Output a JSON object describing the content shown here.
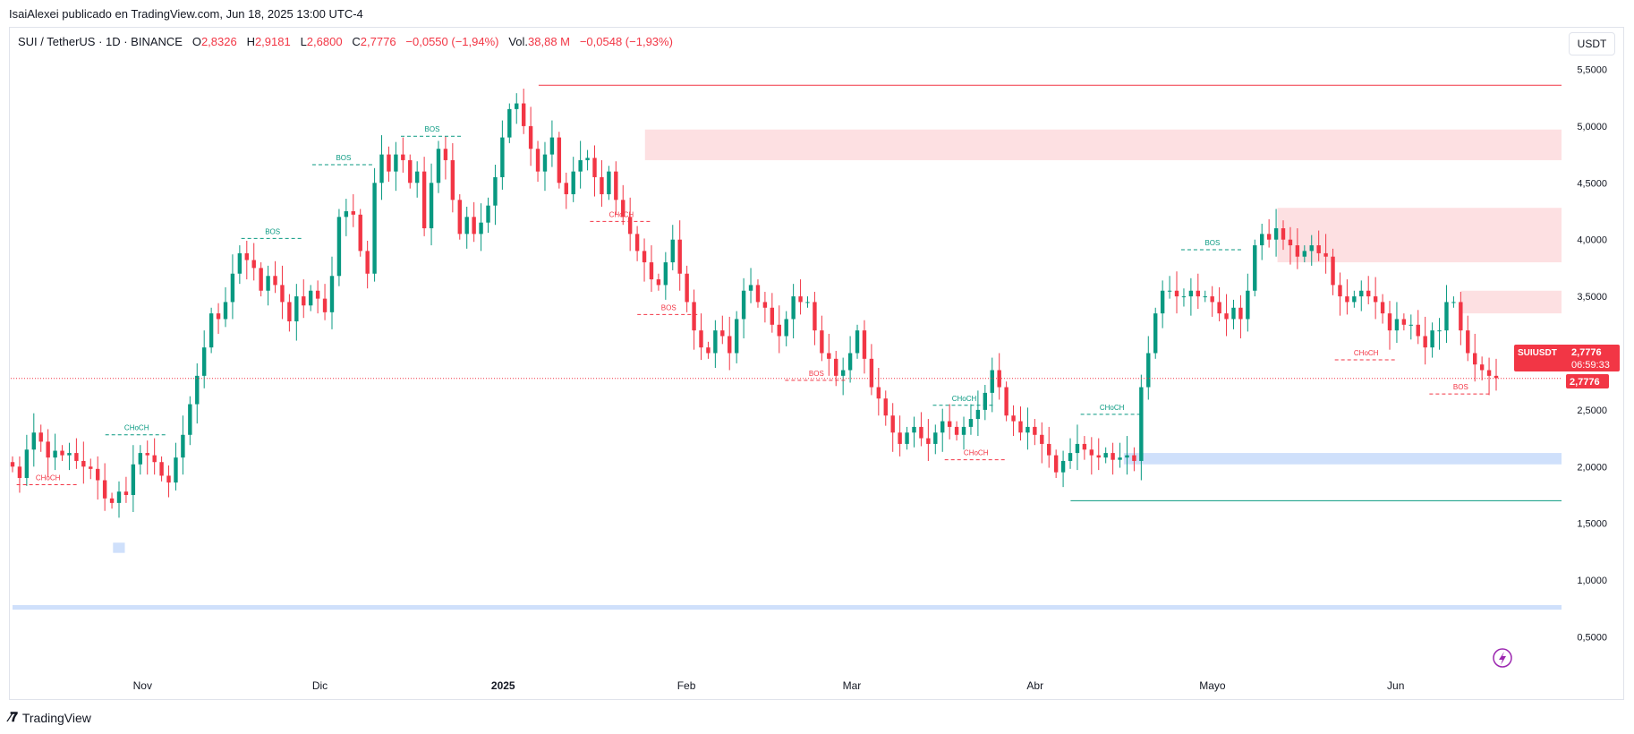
{
  "caption": "IsaiAlexei publicado en TradingView.com, Jun 18, 2025 13:00 UTC-4",
  "legend": {
    "symbol": "SUI / TetherUS · 1D · BINANCE",
    "o_label": "O",
    "o_value": "2,8326",
    "h_label": "H",
    "h_value": "2,9181",
    "l_label": "L",
    "l_value": "2,6800",
    "c_label": "C",
    "c_value": "2,7776",
    "change": "−0,0550 (−1,94%)",
    "vol_label": "Vol.",
    "vol_value": "38,88 M",
    "vol_change": "−0,0548 (−1,93%)"
  },
  "currency_button": "USDT",
  "brand": "TradingView",
  "colors": {
    "up": "#089981",
    "down": "#f23645",
    "supply_zone": "#fde0e2",
    "demand_zone": "#cfe0fb",
    "text": "#131722",
    "grid": "#e0e3eb"
  },
  "chart_data": {
    "type": "candlestick",
    "title": "SUI / TetherUS · 1D · BINANCE",
    "y_axis_labels": [
      "5,5000",
      "5,0000",
      "4,5000",
      "4,0000",
      "3,5000",
      "3,0000",
      "2,5000",
      "2,0000",
      "1,5000",
      "1,0000",
      "0,5000"
    ],
    "y_ticks": [
      5.5,
      5.0,
      4.5,
      4.0,
      3.5,
      3.0,
      2.5,
      2.0,
      1.5,
      1.0,
      0.5
    ],
    "ylim": [
      0.2,
      5.75
    ],
    "x_axis_labels": [
      {
        "label": "Nov",
        "date": "2024-11-01"
      },
      {
        "label": "Dic",
        "date": "2024-12-01"
      },
      {
        "label": "2025",
        "date": "2025-01-01"
      },
      {
        "label": "Feb",
        "date": "2025-02-01"
      },
      {
        "label": "Mar",
        "date": "2025-03-01"
      },
      {
        "label": "Abr",
        "date": "2025-04-01"
      },
      {
        "label": "Mayo",
        "date": "2025-05-01"
      },
      {
        "label": "Jun",
        "date": "2025-06-01"
      }
    ],
    "date_range": [
      "2024-10-10",
      "2025-06-18"
    ],
    "last_price": {
      "symbol": "SUIUSDT",
      "price": "2,7776",
      "countdown": "06:59:33",
      "value": 2.7776
    },
    "closes": [
      2.0,
      1.9,
      2.15,
      2.3,
      2.22,
      2.08,
      2.14,
      2.1,
      2.12,
      2.05,
      2.0,
      1.98,
      1.88,
      1.72,
      1.68,
      1.78,
      1.75,
      2.02,
      2.12,
      2.1,
      2.04,
      1.92,
      1.86,
      2.08,
      2.28,
      2.55,
      2.8,
      3.05,
      3.35,
      3.3,
      3.45,
      3.7,
      3.88,
      3.82,
      3.75,
      3.55,
      3.68,
      3.6,
      3.45,
      3.28,
      3.5,
      3.42,
      3.55,
      3.48,
      3.36,
      3.68,
      4.2,
      4.25,
      4.22,
      3.9,
      3.7,
      4.5,
      4.75,
      4.6,
      4.75,
      4.7,
      4.5,
      4.6,
      4.1,
      4.5,
      4.8,
      4.7,
      4.35,
      4.05,
      4.2,
      4.05,
      4.15,
      4.3,
      4.55,
      4.9,
      5.15,
      5.2,
      5.0,
      4.8,
      4.6,
      4.75,
      4.9,
      4.5,
      4.4,
      4.6,
      4.7,
      4.72,
      4.55,
      4.4,
      4.6,
      4.35,
      4.2,
      4.05,
      3.9,
      3.8,
      3.65,
      3.6,
      3.8,
      4.0,
      3.7,
      3.45,
      3.2,
      3.05,
      3.0,
      3.2,
      3.15,
      3.0,
      3.3,
      3.55,
      3.6,
      3.45,
      3.4,
      3.25,
      3.15,
      3.3,
      3.5,
      3.45,
      3.45,
      3.2,
      3.0,
      2.95,
      2.8,
      2.85,
      3.0,
      3.2,
      2.95,
      2.7,
      2.6,
      2.45,
      2.3,
      2.2,
      2.3,
      2.35,
      2.25,
      2.2,
      2.3,
      2.4,
      2.35,
      2.28,
      2.35,
      2.42,
      2.5,
      2.65,
      2.85,
      2.7,
      2.45,
      2.4,
      2.3,
      2.35,
      2.28,
      2.2,
      2.1,
      1.95,
      2.05,
      2.12,
      2.2,
      2.15,
      2.1,
      2.08,
      2.12,
      2.06,
      2.08,
      2.1,
      2.05,
      2.7,
      3.0,
      3.35,
      3.55,
      3.55,
      3.5,
      3.5,
      3.55,
      3.5,
      3.5,
      3.45,
      3.35,
      3.3,
      3.4,
      3.3,
      3.55,
      3.95,
      4.05,
      4.0,
      4.1,
      4.0,
      3.95,
      3.85,
      3.9,
      3.95,
      3.88,
      3.85,
      3.6,
      3.5,
      3.45,
      3.5,
      3.55,
      3.5,
      3.45,
      3.35,
      3.2,
      3.3,
      3.25,
      3.25,
      3.15,
      3.05,
      3.2,
      3.2,
      3.45,
      3.45,
      3.2,
      3.0,
      2.9,
      2.85,
      2.8,
      2.78
    ],
    "annotations": [
      {
        "text": "CHoCH",
        "color": "#f23645",
        "date": "2024-10-16",
        "price": 1.88
      },
      {
        "text": "CHoCH",
        "color": "#089981",
        "date": "2024-10-31",
        "price": 2.32
      },
      {
        "text": "BOS",
        "color": "#089981",
        "date": "2024-11-23",
        "price": 4.05
      },
      {
        "text": "BOS",
        "color": "#089981",
        "date": "2024-12-05",
        "price": 4.7
      },
      {
        "text": "BOS",
        "color": "#089981",
        "date": "2024-12-20",
        "price": 4.95
      },
      {
        "text": "CHoCH",
        "color": "#f23645",
        "date": "2025-01-21",
        "price": 4.2
      },
      {
        "text": "BOS",
        "color": "#f23645",
        "date": "2025-01-29",
        "price": 3.38
      },
      {
        "text": "BOS",
        "color": "#f23645",
        "date": "2025-02-23",
        "price": 2.8
      },
      {
        "text": "CHoCH",
        "color": "#089981",
        "date": "2025-03-20",
        "price": 2.58
      },
      {
        "text": "CHoCH",
        "color": "#f23645",
        "date": "2025-03-22",
        "price": 2.1
      },
      {
        "text": "CHoCH",
        "color": "#089981",
        "date": "2025-04-14",
        "price": 2.5
      },
      {
        "text": "BOS",
        "color": "#089981",
        "date": "2025-05-01",
        "price": 3.95
      },
      {
        "text": "CHoCH",
        "color": "#f23645",
        "date": "2025-05-27",
        "price": 2.98
      },
      {
        "text": "BOS",
        "color": "#f23645",
        "date": "2025-06-12",
        "price": 2.68
      }
    ]
  }
}
